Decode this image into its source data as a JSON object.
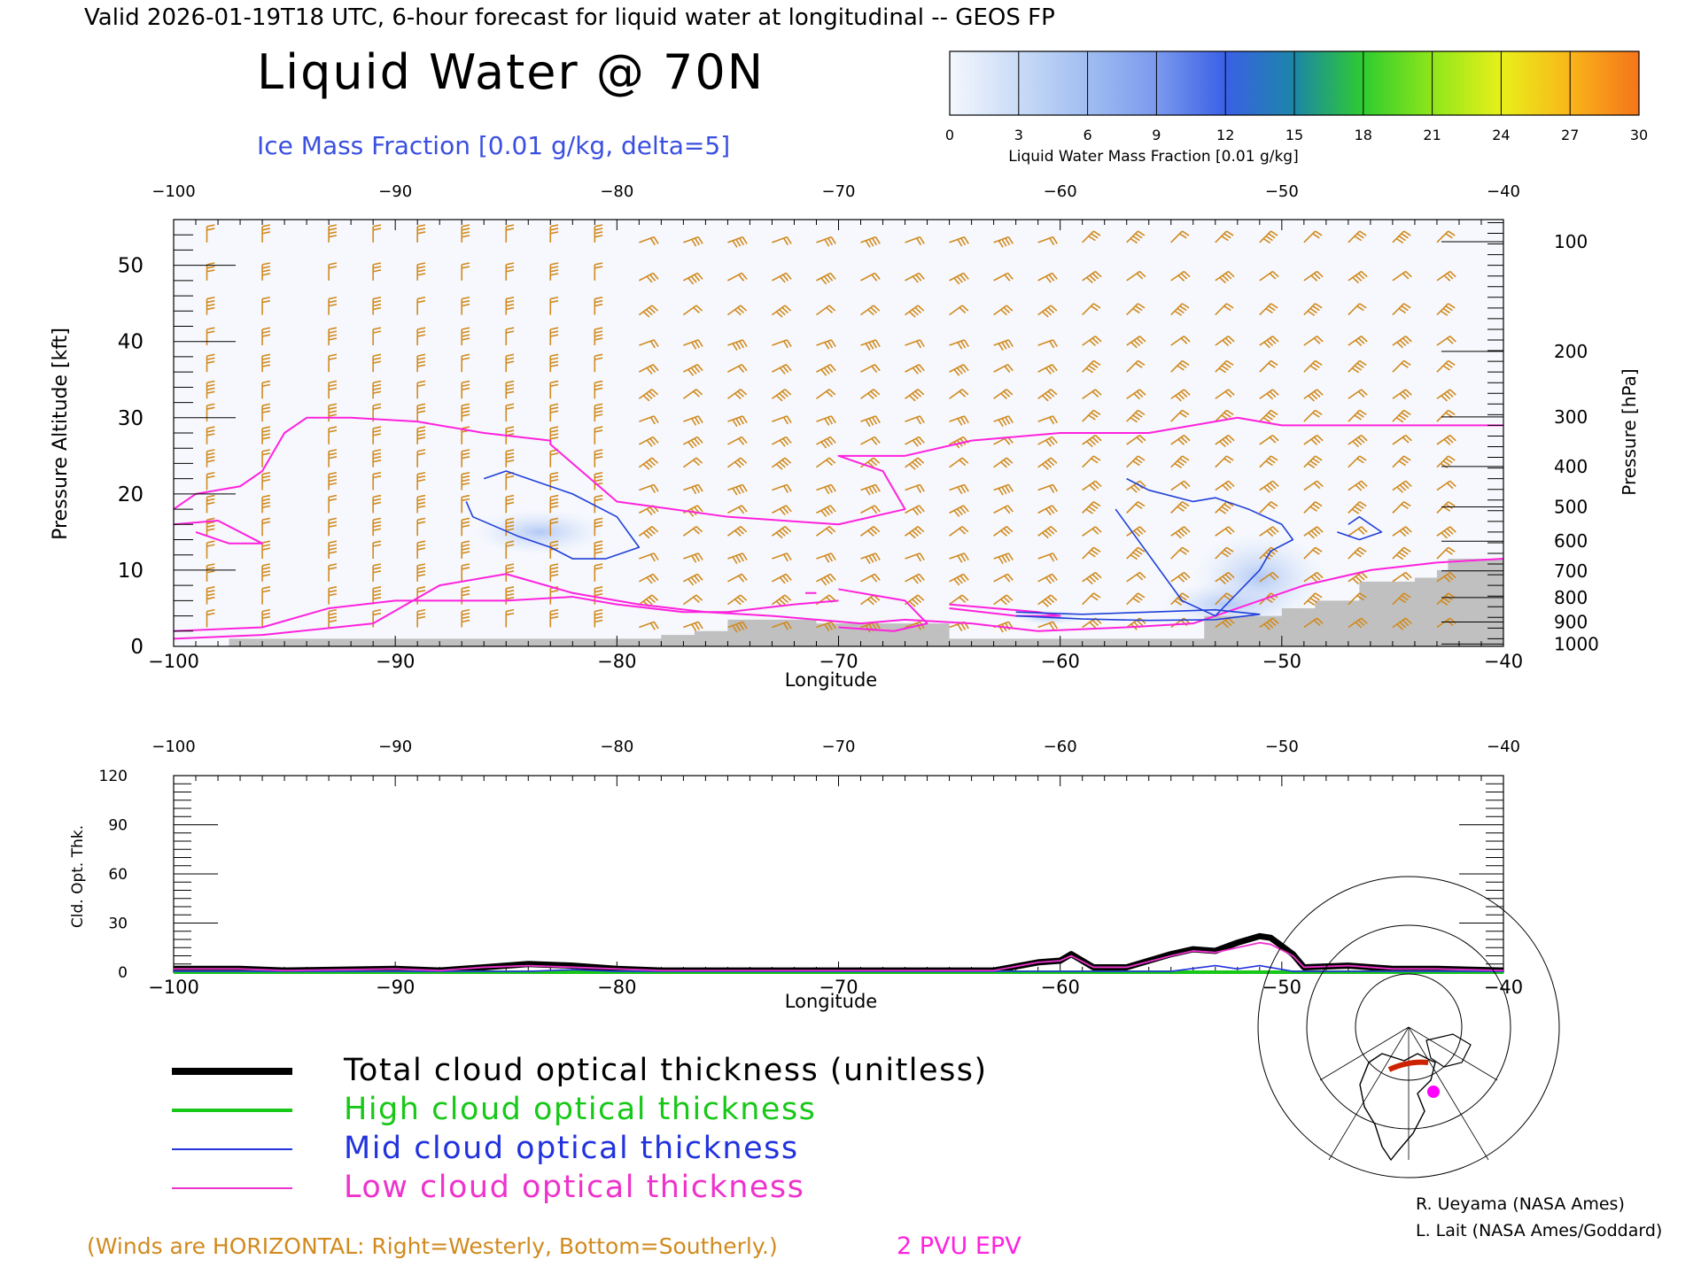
{
  "header": {
    "valid_line": "Valid 2026-01-19T18 UTC, 6-hour forecast for liquid water at longitudinal -- GEOS FP",
    "title": "Liquid Water @ 70N",
    "subtitle": "Ice Mass Fraction [0.01 g/kg, delta=5]"
  },
  "colorbar": {
    "ticks": [
      "0",
      "3",
      "6",
      "9",
      "12",
      "15",
      "18",
      "21",
      "24",
      "27",
      "30"
    ],
    "colors": [
      "#f4f7fd",
      "#c9dbf6",
      "#a0bdf1",
      "#7b99ee",
      "#3a60e6",
      "#1c86a7",
      "#2fcc2f",
      "#8fe61a",
      "#e8f01a",
      "#f9b51a",
      "#f5741a"
    ],
    "label": "Liquid Water Mass Fraction [0.01 g/kg]"
  },
  "colors": {
    "wind": "#d18a1e",
    "epv": "#ff22dd",
    "ice": "#1f3fd9",
    "terrain": "#c0c0c0",
    "total": "#000000",
    "high": "#18c818",
    "mid": "#2233dd",
    "low": "#ee33cc"
  },
  "chart_data": [
    {
      "type": "contour",
      "xlabel": "Longitude",
      "ylabel_left": "Pressure Altitude [kft]",
      "ylabel_right": "Pressure [hPa]",
      "x_ticks": [
        "−100",
        "−90",
        "−80",
        "−70",
        "−60",
        "−50",
        "−40"
      ],
      "xlim": [
        -100,
        -40
      ],
      "ylim": [
        0,
        56
      ],
      "y_ticks": [
        "0",
        "10",
        "20",
        "30",
        "40",
        "50"
      ],
      "pressure_ticks": [
        {
          "label": "100",
          "alt": 53.1
        },
        {
          "label": "200",
          "alt": 38.7
        },
        {
          "label": "300",
          "alt": 30.1
        },
        {
          "label": "400",
          "alt": 23.6
        },
        {
          "label": "500",
          "alt": 18.3
        },
        {
          "label": "600",
          "alt": 13.8
        },
        {
          "label": "700",
          "alt": 9.9
        },
        {
          "label": "800",
          "alt": 6.4
        },
        {
          "label": "900",
          "alt": 3.2
        },
        {
          "label": "1000",
          "alt": 0.3
        }
      ],
      "terrain": {
        "lon": [
          -97.5,
          -93.5,
          -88,
          -80.5,
          -78,
          -76.5,
          -75,
          -71,
          -65,
          -62,
          -55.5,
          -53.5,
          -51.5,
          -50,
          -48.5,
          -46.5,
          -44,
          -43,
          -42.5,
          -40
        ],
        "alt": [
          1,
          1,
          1,
          1,
          1.5,
          2,
          3.5,
          3,
          1,
          1,
          1,
          4,
          4,
          5,
          6,
          8.5,
          9,
          10,
          11.5,
          11.5
        ]
      },
      "epv_contours": [
        {
          "lon": [
            -100,
            -99,
            -97,
            -96,
            -95,
            -94,
            -92,
            -89,
            -86,
            -83,
            -83,
            -80,
            -75,
            -70,
            -67,
            -68,
            -70,
            -67,
            -64,
            -60,
            -56,
            -52,
            -50,
            -46,
            -40
          ],
          "alt": [
            18,
            20,
            21,
            23,
            28,
            30,
            30,
            29.5,
            28,
            27,
            26.5,
            19,
            17,
            16,
            18,
            23,
            25,
            25,
            27,
            28,
            28,
            30,
            29,
            29,
            29
          ]
        },
        {
          "lon": [
            -100,
            -98,
            -96,
            -97.5,
            -99
          ],
          "alt": [
            16,
            16.5,
            13.5,
            13.5,
            15
          ]
        },
        {
          "lon": [
            -100,
            -96,
            -93,
            -90,
            -87,
            -85,
            -82,
            -80,
            -77,
            -75,
            -72,
            -70
          ],
          "alt": [
            2,
            2.5,
            5,
            6,
            6,
            6,
            6.5,
            5.5,
            4.5,
            4.5,
            5.5,
            6
          ]
        },
        {
          "lon": [
            -100,
            -96,
            -91,
            -88,
            -85,
            -82,
            -79,
            -76,
            -73,
            -71,
            -69,
            -67,
            -64,
            -61,
            -57,
            -54,
            -52,
            -49,
            -46,
            -43,
            -40
          ],
          "alt": [
            1,
            1.5,
            3,
            8,
            9.5,
            7,
            5.5,
            4.5,
            4,
            3.5,
            3,
            3.5,
            3,
            2,
            2.5,
            3,
            5,
            8,
            10,
            11,
            11.5
          ]
        },
        {
          "lon": [
            -65,
            -63,
            -61,
            -60,
            -62,
            -65
          ],
          "alt": [
            5.5,
            5,
            4.5,
            4,
            4,
            5
          ]
        },
        {
          "lon": [
            -70,
            -67,
            -66,
            -67.5,
            -70
          ],
          "alt": [
            7.5,
            6,
            3,
            2,
            2.5
          ]
        },
        {
          "lon": [
            -71.5,
            -71
          ],
          "alt": [
            7,
            7
          ]
        }
      ],
      "ice_contours": [
        {
          "lon": [
            -86,
            -85,
            -83.5,
            -82,
            -80,
            -79,
            -80.5,
            -82,
            -83,
            -84.5,
            -86.5,
            -86.8
          ],
          "alt": [
            22,
            23,
            21.5,
            20,
            17,
            13,
            11.5,
            11.5,
            13,
            14.5,
            17,
            19
          ]
        },
        {
          "lon": [
            -57,
            -56,
            -54,
            -53,
            -51.5,
            -50,
            -49.5,
            -50.5,
            -51,
            -52,
            -53,
            -54.5,
            -56,
            -57.5
          ],
          "alt": [
            22,
            20.5,
            19,
            19.5,
            18,
            16,
            14,
            12.5,
            10,
            7,
            4,
            6,
            12,
            18
          ]
        },
        {
          "lon": [
            -47,
            -46.5,
            -45.5,
            -46.5,
            -47.5
          ],
          "alt": [
            16,
            17,
            15,
            14,
            15
          ]
        },
        {
          "lon": [
            -62,
            -59,
            -56,
            -53,
            -51,
            -53,
            -56,
            -59,
            -62
          ],
          "alt": [
            4.5,
            4.2,
            4.5,
            4.8,
            4.2,
            3.5,
            3.4,
            3.6,
            4
          ]
        }
      ],
      "liquid_blobs": [
        {
          "lon": -51,
          "alt": 9,
          "rx": 3,
          "ry": 6,
          "value": 2
        },
        {
          "lon": -52.5,
          "alt": 5.5,
          "rx": 3,
          "ry": 3,
          "value": 3
        },
        {
          "lon": -83.5,
          "alt": 15,
          "rx": 3,
          "ry": 3,
          "value": 1
        },
        {
          "lon": -60.5,
          "alt": 3.8,
          "rx": 1.5,
          "ry": 1,
          "value": 3
        }
      ],
      "wind_lon": [
        -98.5,
        -96,
        -93,
        -91,
        -89,
        -87,
        -85,
        -83,
        -81,
        -79,
        -77,
        -75,
        -73,
        -71,
        -69,
        -67,
        -65,
        -63,
        -61,
        -59,
        -57,
        -55,
        -53,
        -51,
        -49,
        -47,
        -45,
        -43
      ],
      "wind_alt": [
        53,
        48,
        43.5,
        39.5,
        36,
        32.5,
        29.5,
        26.5,
        23.5,
        20.5,
        17.5,
        14.5,
        11.5,
        8.5,
        5.5,
        2.5
      ]
    },
    {
      "type": "line",
      "xlabel": "Longitude",
      "ylabel": "Cld. Opt. Thk.",
      "x_ticks": [
        "−100",
        "−90",
        "−80",
        "−70",
        "−60",
        "−50",
        "−40"
      ],
      "xlim": [
        -100,
        -40
      ],
      "ylim": [
        0,
        120
      ],
      "y_ticks": [
        "0",
        "30",
        "60",
        "90",
        "120"
      ],
      "series": [
        {
          "name": "Total cloud optical thickness (unitless)",
          "key": "total",
          "x": [
            -100,
            -97,
            -95,
            -90,
            -88,
            -86,
            -84,
            -82,
            -80,
            -78,
            -75,
            -70,
            -65,
            -63,
            -61,
            -60,
            -59.5,
            -58.5,
            -57,
            -55,
            -54,
            -53,
            -52,
            -51,
            -50.5,
            -49.5,
            -49,
            -47,
            -45,
            -43,
            -40
          ],
          "y": [
            2,
            2,
            1,
            2,
            1,
            3,
            5,
            4,
            2,
            1,
            1,
            1,
            1,
            1,
            6,
            7,
            11,
            3,
            3,
            11,
            14,
            13,
            18,
            22,
            21,
            11,
            3,
            4,
            2,
            2,
            1
          ]
        },
        {
          "name": "High cloud optical thickness",
          "key": "high",
          "x": [
            -100,
            -40
          ],
          "y": [
            0,
            0
          ]
        },
        {
          "name": "Mid cloud optical thickness",
          "key": "mid",
          "x": [
            -100,
            -84,
            -82,
            -80,
            -62,
            -55,
            -53,
            -52,
            -51,
            -49.5,
            -47,
            -40
          ],
          "y": [
            0.5,
            0.5,
            1.5,
            0.5,
            0.5,
            0.5,
            4,
            2,
            4,
            0.5,
            0.5,
            0.5
          ]
        },
        {
          "name": "Low cloud optical thickness",
          "key": "low",
          "x": [
            -100,
            -97,
            -95,
            -90,
            -88,
            -86,
            -84,
            -82,
            -80,
            -78,
            -75,
            -70,
            -65,
            -63,
            -61,
            -60,
            -59.5,
            -58.5,
            -57,
            -55,
            -54,
            -53,
            -52,
            -51,
            -50.5,
            -49.5,
            -49,
            -47,
            -45,
            -43,
            -40
          ],
          "y": [
            2,
            2,
            1,
            2,
            1,
            3,
            4,
            3,
            2,
            1,
            1,
            1,
            1,
            1,
            6,
            7,
            10,
            3,
            3,
            10,
            13,
            12,
            15,
            18,
            17,
            10,
            3,
            4,
            2,
            2,
            1
          ]
        }
      ]
    }
  ],
  "legend": {
    "total": "Total cloud optical thickness (unitless)",
    "high": "High cloud optical thickness",
    "mid": "Mid cloud optical thickness",
    "low": "Low cloud optical thickness"
  },
  "footer": {
    "winds_note": "(Winds are HORIZONTAL: Right=Westerly, Bottom=Southerly.)",
    "epv_label": "2 PVU EPV",
    "credit1": "R. Ueyama (NASA Ames)",
    "credit2": "L. Lait (NASA Ames/Goddard)"
  }
}
